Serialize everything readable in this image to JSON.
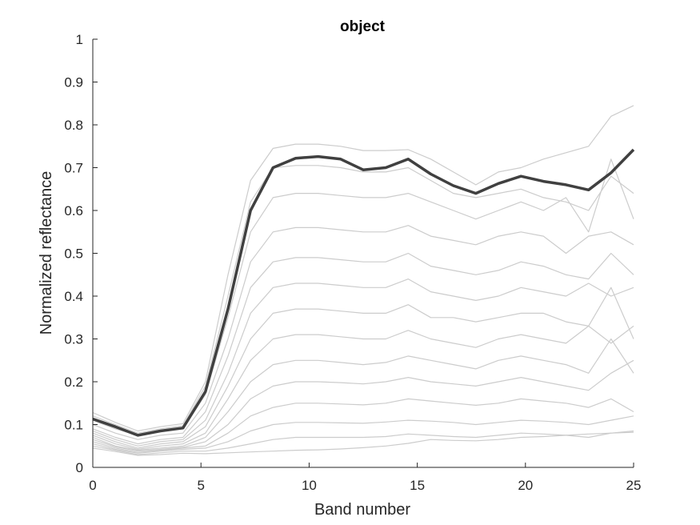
{
  "chart_data": {
    "type": "line",
    "title": "object",
    "xlabel": "Band number",
    "ylabel": "Normalized reflectance",
    "xlim": [
      0,
      25
    ],
    "ylim": [
      0,
      1
    ],
    "xticks": [
      "0",
      "5",
      "10",
      "15",
      "20",
      "25"
    ],
    "yticks": [
      "0",
      "0.1",
      "0.2",
      "0.3",
      "0.4",
      "0.5",
      "0.6",
      "0.7",
      "0.8",
      "0.9",
      "1"
    ],
    "grid": false,
    "colors": {
      "background_series": "#cccccc",
      "highlight_series": "#404040",
      "axis": "#262626"
    },
    "x": [
      0,
      1,
      2,
      3,
      4,
      5,
      6,
      7,
      8,
      9,
      10,
      11,
      12,
      13,
      14,
      15,
      16,
      17,
      18,
      19,
      20,
      21,
      22,
      23,
      24
    ],
    "series": [
      {
        "role": "highlight",
        "values": [
          0.113,
          0.095,
          0.075,
          0.085,
          0.092,
          0.177,
          0.37,
          0.6,
          0.7,
          0.722,
          0.726,
          0.72,
          0.695,
          0.7,
          0.72,
          0.685,
          0.658,
          0.64,
          0.663,
          0.68,
          0.668,
          0.66,
          0.648,
          0.688,
          0.742
        ]
      },
      {
        "role": "background",
        "values": [
          0.128,
          0.105,
          0.085,
          0.095,
          0.102,
          0.2,
          0.45,
          0.67,
          0.745,
          0.755,
          0.755,
          0.75,
          0.74,
          0.74,
          0.742,
          0.72,
          0.69,
          0.66,
          0.69,
          0.7,
          0.72,
          0.735,
          0.75,
          0.82,
          0.845
        ]
      },
      {
        "role": "background",
        "values": [
          0.12,
          0.1,
          0.08,
          0.09,
          0.097,
          0.19,
          0.4,
          0.62,
          0.7,
          0.705,
          0.705,
          0.7,
          0.69,
          0.69,
          0.7,
          0.67,
          0.64,
          0.63,
          0.64,
          0.65,
          0.63,
          0.62,
          0.6,
          0.68,
          0.64
        ]
      },
      {
        "role": "background",
        "values": [
          0.11,
          0.09,
          0.075,
          0.085,
          0.09,
          0.17,
          0.35,
          0.55,
          0.63,
          0.64,
          0.64,
          0.635,
          0.63,
          0.63,
          0.64,
          0.62,
          0.6,
          0.58,
          0.6,
          0.62,
          0.6,
          0.63,
          0.55,
          0.72,
          0.58
        ]
      },
      {
        "role": "background",
        "values": [
          0.1,
          0.08,
          0.065,
          0.075,
          0.08,
          0.15,
          0.3,
          0.48,
          0.55,
          0.56,
          0.56,
          0.555,
          0.55,
          0.55,
          0.565,
          0.54,
          0.53,
          0.52,
          0.54,
          0.55,
          0.54,
          0.5,
          0.54,
          0.55,
          0.52
        ]
      },
      {
        "role": "background",
        "values": [
          0.09,
          0.07,
          0.055,
          0.065,
          0.07,
          0.13,
          0.26,
          0.42,
          0.48,
          0.49,
          0.49,
          0.485,
          0.48,
          0.48,
          0.5,
          0.47,
          0.46,
          0.45,
          0.46,
          0.48,
          0.47,
          0.45,
          0.44,
          0.5,
          0.45
        ]
      },
      {
        "role": "background",
        "values": [
          0.085,
          0.065,
          0.05,
          0.06,
          0.065,
          0.11,
          0.22,
          0.36,
          0.42,
          0.43,
          0.43,
          0.425,
          0.42,
          0.42,
          0.44,
          0.41,
          0.4,
          0.39,
          0.4,
          0.42,
          0.41,
          0.4,
          0.43,
          0.4,
          0.42
        ]
      },
      {
        "role": "background",
        "values": [
          0.08,
          0.06,
          0.045,
          0.055,
          0.06,
          0.095,
          0.19,
          0.3,
          0.36,
          0.37,
          0.37,
          0.365,
          0.36,
          0.36,
          0.38,
          0.35,
          0.35,
          0.34,
          0.35,
          0.36,
          0.36,
          0.34,
          0.33,
          0.42,
          0.3
        ]
      },
      {
        "role": "background",
        "values": [
          0.075,
          0.055,
          0.042,
          0.05,
          0.055,
          0.08,
          0.16,
          0.25,
          0.3,
          0.31,
          0.31,
          0.305,
          0.3,
          0.3,
          0.32,
          0.3,
          0.29,
          0.28,
          0.3,
          0.31,
          0.3,
          0.29,
          0.33,
          0.29,
          0.33
        ]
      },
      {
        "role": "background",
        "values": [
          0.07,
          0.05,
          0.04,
          0.045,
          0.05,
          0.07,
          0.13,
          0.2,
          0.24,
          0.25,
          0.25,
          0.245,
          0.24,
          0.245,
          0.26,
          0.25,
          0.24,
          0.23,
          0.25,
          0.26,
          0.25,
          0.24,
          0.22,
          0.3,
          0.22
        ]
      },
      {
        "role": "background",
        "values": [
          0.065,
          0.048,
          0.038,
          0.042,
          0.047,
          0.06,
          0.1,
          0.16,
          0.19,
          0.2,
          0.2,
          0.198,
          0.195,
          0.2,
          0.21,
          0.2,
          0.195,
          0.19,
          0.2,
          0.21,
          0.2,
          0.19,
          0.18,
          0.22,
          0.25
        ]
      },
      {
        "role": "background",
        "values": [
          0.06,
          0.045,
          0.035,
          0.04,
          0.045,
          0.05,
          0.08,
          0.12,
          0.14,
          0.15,
          0.15,
          0.148,
          0.146,
          0.15,
          0.16,
          0.155,
          0.15,
          0.145,
          0.15,
          0.16,
          0.155,
          0.15,
          0.14,
          0.16,
          0.13
        ]
      },
      {
        "role": "background",
        "values": [
          0.055,
          0.042,
          0.033,
          0.038,
          0.042,
          0.045,
          0.06,
          0.085,
          0.1,
          0.105,
          0.105,
          0.104,
          0.103,
          0.106,
          0.11,
          0.108,
          0.105,
          0.1,
          0.105,
          0.11,
          0.108,
          0.105,
          0.1,
          0.11,
          0.12
        ]
      },
      {
        "role": "background",
        "values": [
          0.05,
          0.04,
          0.03,
          0.034,
          0.038,
          0.038,
          0.045,
          0.055,
          0.065,
          0.07,
          0.07,
          0.07,
          0.07,
          0.072,
          0.078,
          0.075,
          0.072,
          0.07,
          0.075,
          0.08,
          0.078,
          0.075,
          0.07,
          0.08,
          0.085
        ]
      },
      {
        "role": "background",
        "values": [
          0.045,
          0.037,
          0.028,
          0.03,
          0.033,
          0.032,
          0.034,
          0.036,
          0.038,
          0.04,
          0.041,
          0.043,
          0.046,
          0.05,
          0.056,
          0.065,
          0.063,
          0.062,
          0.065,
          0.07,
          0.072,
          0.075,
          0.078,
          0.08,
          0.082
        ]
      }
    ]
  }
}
